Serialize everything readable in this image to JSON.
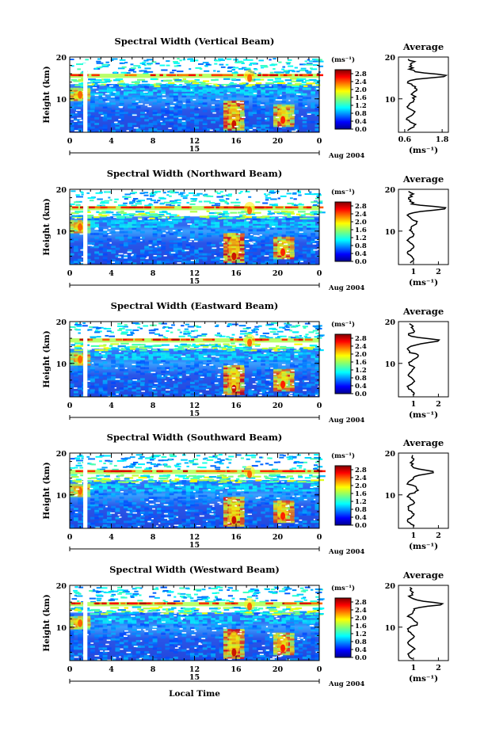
{
  "panels": [
    {
      "title": "Spectral Width (Vertical Beam)",
      "avg_xticks": [
        "0.6",
        "1.8"
      ],
      "avg_xlim": [
        0.4,
        2.0
      ],
      "profile_peak": 1.85
    },
    {
      "title": "Spectral Width (Northward Beam)",
      "avg_xticks": [
        "1",
        "2"
      ],
      "avg_xlim": [
        0.4,
        2.4
      ],
      "profile_peak": 2.25
    },
    {
      "title": "Spectral Width (Eastward Beam)",
      "avg_xticks": [
        "1",
        "2"
      ],
      "avg_xlim": [
        0.4,
        2.4
      ],
      "profile_peak": 2.05
    },
    {
      "title": "Spectral Width (Southward Beam)",
      "avg_xticks": [
        "1",
        "2"
      ],
      "avg_xlim": [
        0.4,
        2.4
      ],
      "profile_peak": 1.95
    },
    {
      "title": "Spectral Width (Westward Beam)",
      "avg_xticks": [
        "1",
        "2"
      ],
      "avg_xlim": [
        0.4,
        2.4
      ],
      "profile_peak": 2.3
    }
  ],
  "labels": {
    "ylabel": "Height (km)",
    "avg_title": "Average",
    "avg_xlabel": "(ms⁻¹)",
    "colorbar_unit": "(ms⁻¹)",
    "date_day": "15",
    "date_month": "Aug 2004",
    "xlabel": "Local Time"
  },
  "chart_data": {
    "type": "heatmap",
    "x": {
      "label": "Local Time",
      "unit": "h",
      "range": [
        0,
        24
      ],
      "ticks": [
        "0",
        "4",
        "8",
        "12",
        "16",
        "20",
        "0"
      ]
    },
    "y": {
      "label": "Height (km)",
      "range": [
        2,
        20
      ],
      "ticks": [
        "10",
        "20"
      ]
    },
    "colorbar": {
      "unit": "(ms⁻¹)",
      "range": [
        0,
        3.0
      ],
      "ticks": [
        "0.0",
        "0.4",
        "0.8",
        "1.2",
        "1.6",
        "2.0",
        "2.4",
        "2.8"
      ]
    },
    "date": "15 Aug 2004",
    "data_gap_hours": [
      1.3,
      1.7
    ],
    "tropopause_layer_km": [
      15,
      16
    ],
    "enhanced_features": [
      {
        "time_h": 15.8,
        "height_km": [
          3,
          9
        ],
        "value": 2.8
      },
      {
        "time_h": 17.3,
        "height_km": [
          14,
          17
        ],
        "value": 2.4
      },
      {
        "time_h": 20.5,
        "height_km": [
          4,
          8
        ],
        "value": 2.6
      },
      {
        "time_h": 1.0,
        "height_km": [
          10,
          12
        ],
        "value": 2.4
      }
    ],
    "average_profiles": [
      {
        "name": "Vertical Beam",
        "peak_height_km": 15.5,
        "peak_value": 1.85,
        "background": 0.8
      },
      {
        "name": "Northward Beam",
        "peak_height_km": 15.5,
        "peak_value": 2.25,
        "background": 0.9
      },
      {
        "name": "Eastward Beam",
        "peak_height_km": 15.5,
        "peak_value": 2.05,
        "background": 0.9
      },
      {
        "name": "Southward Beam",
        "peak_height_km": 15.5,
        "peak_value": 1.95,
        "background": 0.9
      },
      {
        "name": "Westward Beam",
        "peak_height_km": 15.5,
        "peak_value": 2.3,
        "background": 0.9
      }
    ],
    "grid": false
  }
}
